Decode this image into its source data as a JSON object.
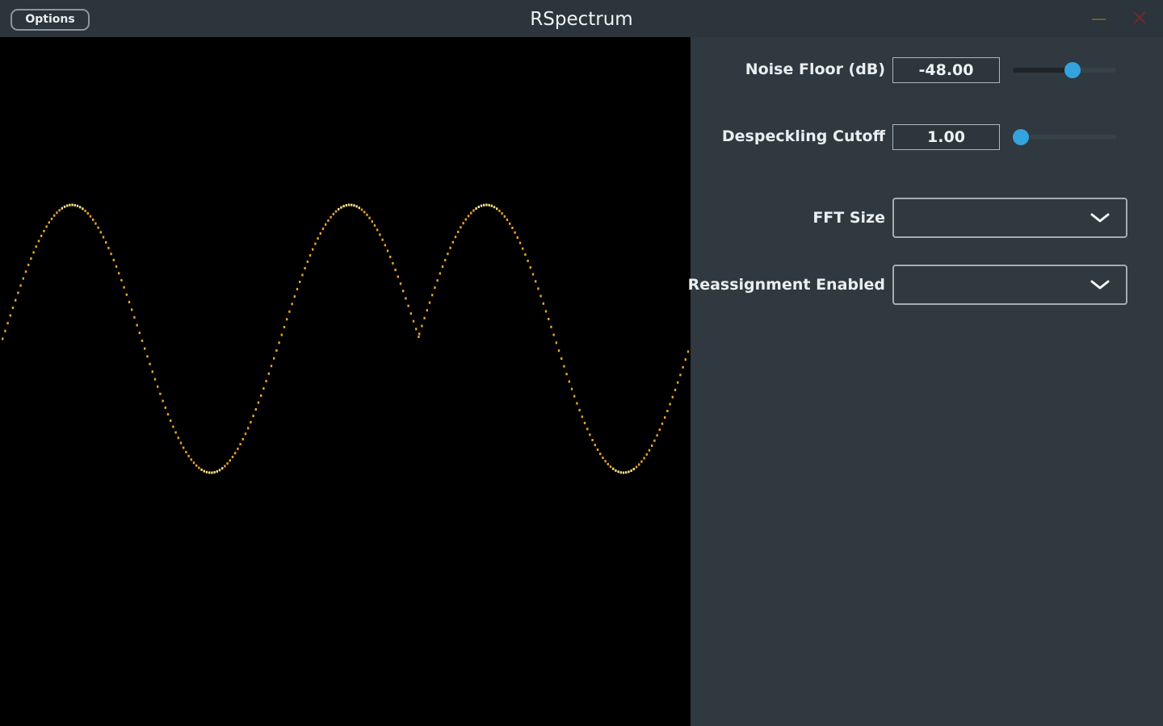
{
  "window": {
    "title": "RSpectrum",
    "options_label": "Options",
    "controls": {
      "minimize_icon": "minimize-icon",
      "close_icon": "close-icon",
      "minimize_color": "#6f5f2a",
      "close_color": "#6b2b2b"
    }
  },
  "plot": {
    "background": "#000000",
    "trace_color": "#e8a22a",
    "trace_highlight": "#f6df84"
  },
  "controls": {
    "noise_floor": {
      "label": "Noise Floor (dB)",
      "value": "-48.00",
      "slider_fraction": 0.58
    },
    "despeckling_cutoff": {
      "label": "Despeckling Cutoff",
      "value": "1.00",
      "slider_fraction": 0.04
    },
    "fft_size": {
      "label": "FFT Size",
      "value": "",
      "icon": "chevron-down-icon"
    },
    "reassignment": {
      "label": "Reassignment Enabled",
      "value": "",
      "icon": "chevron-down-icon"
    }
  },
  "theme": {
    "accent": "#35a3de",
    "panel_bg": "#2f393f",
    "titlebar_bg": "#2b353b"
  }
}
